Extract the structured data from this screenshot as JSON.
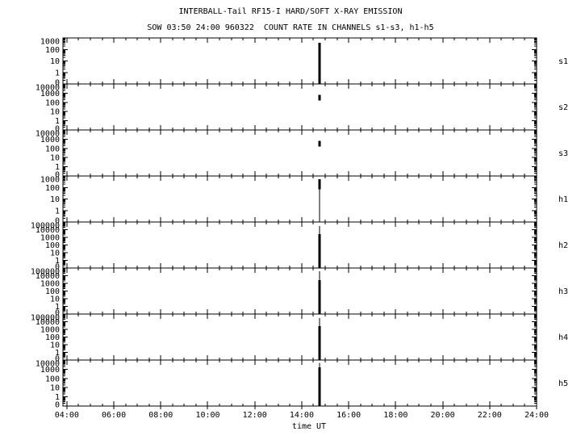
{
  "title": "INTERBALL-Tail RF15-I HARD/SOFT X-RAY EMISSION",
  "subtitle": "SOW 03:50 24:00 960322  COUNT RATE IN CHANNELS s1-s3, h1-h5",
  "x_axis": {
    "label": "time UT",
    "start_time": "03:50",
    "end_time": "24:00",
    "major_tick_labels": [
      "04:00",
      "06:00",
      "08:00",
      "10:00",
      "12:00",
      "14:00",
      "16:00",
      "18:00",
      "20:00",
      "22:00",
      "24:00"
    ],
    "minor_tick_interval_minutes": 30
  },
  "flare": {
    "time": "14:45",
    "date": "960322"
  },
  "panels": [
    {
      "channel": "s1",
      "y_tick_labels": [
        "1000",
        "100",
        "10",
        "1",
        "0"
      ],
      "spike": {
        "thick_span": [
          0.105,
          1.0
        ]
      }
    },
    {
      "channel": "s2",
      "y_tick_labels": [
        "10000",
        "1000",
        "100",
        "10",
        "1",
        "0"
      ],
      "spike": {
        "thick_span": [
          0.235,
          0.37
        ]
      }
    },
    {
      "channel": "s3",
      "y_tick_labels": [
        "10000",
        "1000",
        "100",
        "10",
        "1",
        "0"
      ],
      "spike": {
        "thick_span": [
          0.235,
          0.37
        ]
      }
    },
    {
      "channel": "h1",
      "y_tick_labels": [
        "1000",
        "100",
        "10",
        "1",
        "0"
      ],
      "spike": {
        "thin_span": [
          0.07,
          1.0
        ],
        "thick_span": [
          0.07,
          0.3
        ]
      }
    },
    {
      "channel": "h2",
      "y_tick_labels": [
        "100000",
        "10000",
        "1000",
        "100",
        "10",
        "1",
        "0"
      ],
      "spike": {
        "thin_span": [
          0.088,
          1.0
        ],
        "thick_span": [
          0.26,
          1.0
        ]
      }
    },
    {
      "channel": "h3",
      "y_tick_labels": [
        "100000",
        "10000",
        "1000",
        "100",
        "10",
        "1",
        "0"
      ],
      "spike": {
        "thin_span": [
          0.07,
          1.0
        ],
        "thick_span": [
          0.26,
          1.0
        ]
      }
    },
    {
      "channel": "h4",
      "y_tick_labels": [
        "100000",
        "10000",
        "1000",
        "100",
        "10",
        "1",
        "0"
      ],
      "spike": {
        "thin_span": [
          0.088,
          1.0
        ],
        "thick_span": [
          0.26,
          1.0
        ]
      }
    },
    {
      "channel": "h5",
      "y_tick_labels": [
        "10000",
        "1000",
        "100",
        "10",
        "1",
        "0"
      ],
      "spike": {
        "thin_span": [
          0.06,
          1.0
        ],
        "thick_span": [
          0.16,
          1.0
        ]
      }
    }
  ],
  "chart_data": {
    "type": "line",
    "title": "INTERBALL-Tail RF15-I HARD/SOFT X-RAY EMISSION",
    "subtitle": "SOW 03:50 24:00 960322  COUNT RATE IN CHANNELS s1-s3, h1-h5",
    "xlabel": "time UT",
    "x_range": [
      "03:50",
      "24:00"
    ],
    "y_scale": "log",
    "grid": false,
    "legend": "none",
    "description": "Eight stacked count-rate panels (channels s1-s3, h1-h5) vs time UT; all traces are flat at/below 1 count except a single narrow solar-flare spike near 14:45 UT.",
    "series": [
      {
        "name": "s1",
        "ylim": [
          0,
          1000
        ],
        "baseline": 0,
        "points": [
          [
            "03:50",
            0
          ],
          [
            "14:45",
            600
          ],
          [
            "24:00",
            0
          ]
        ]
      },
      {
        "name": "s2",
        "ylim": [
          0,
          10000
        ],
        "baseline": 0,
        "points": [
          [
            "03:50",
            0
          ],
          [
            "14:45",
            600
          ],
          [
            "24:00",
            0
          ]
        ]
      },
      {
        "name": "s3",
        "ylim": [
          0,
          10000
        ],
        "baseline": 0,
        "points": [
          [
            "03:50",
            0
          ],
          [
            "14:45",
            500
          ],
          [
            "24:00",
            0
          ]
        ]
      },
      {
        "name": "h1",
        "ylim": [
          0,
          1000
        ],
        "baseline": 0,
        "points": [
          [
            "03:50",
            0
          ],
          [
            "14:45",
            800
          ],
          [
            "24:00",
            0
          ]
        ]
      },
      {
        "name": "h2",
        "ylim": [
          0,
          100000
        ],
        "baseline": 0,
        "points": [
          [
            "03:50",
            0
          ],
          [
            "14:45",
            30000
          ],
          [
            "24:00",
            0
          ]
        ]
      },
      {
        "name": "h3",
        "ylim": [
          0,
          100000
        ],
        "baseline": 0,
        "points": [
          [
            "03:50",
            0
          ],
          [
            "14:45",
            40000
          ],
          [
            "24:00",
            0
          ]
        ]
      },
      {
        "name": "h4",
        "ylim": [
          0,
          100000
        ],
        "baseline": 0,
        "points": [
          [
            "03:50",
            0
          ],
          [
            "14:45",
            30000
          ],
          [
            "24:00",
            0
          ]
        ]
      },
      {
        "name": "h5",
        "ylim": [
          0,
          10000
        ],
        "baseline": 0,
        "points": [
          [
            "03:50",
            0
          ],
          [
            "14:45",
            7000
          ],
          [
            "24:00",
            0
          ]
        ]
      }
    ]
  }
}
